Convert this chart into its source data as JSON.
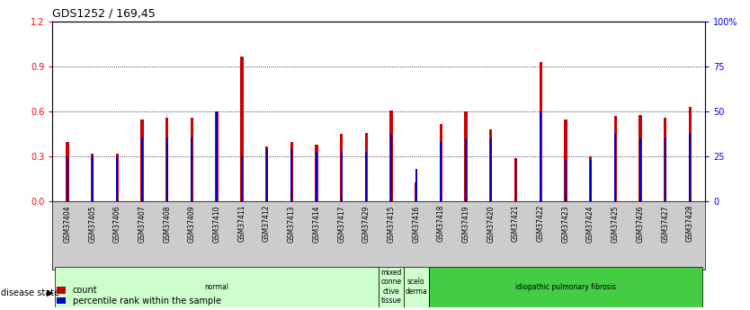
{
  "title": "GDS1252 / 169,45",
  "categories": [
    "GSM37404",
    "GSM37405",
    "GSM37406",
    "GSM37407",
    "GSM37408",
    "GSM37409",
    "GSM37410",
    "GSM37411",
    "GSM37412",
    "GSM37413",
    "GSM37414",
    "GSM37417",
    "GSM37429",
    "GSM37415",
    "GSM37416",
    "GSM37418",
    "GSM37419",
    "GSM37420",
    "GSM37421",
    "GSM37422",
    "GSM37423",
    "GSM37424",
    "GSM37425",
    "GSM37426",
    "GSM37427",
    "GSM37428"
  ],
  "count_values": [
    0.4,
    0.32,
    0.32,
    0.55,
    0.56,
    0.56,
    0.6,
    0.97,
    0.37,
    0.4,
    0.38,
    0.45,
    0.46,
    0.61,
    0.13,
    0.52,
    0.6,
    0.48,
    0.29,
    0.93,
    0.55,
    0.3,
    0.57,
    0.58,
    0.56,
    0.63
  ],
  "percentile_values": [
    0.3,
    0.3,
    0.3,
    0.43,
    0.43,
    0.43,
    0.6,
    0.3,
    0.35,
    0.35,
    0.33,
    0.33,
    0.33,
    0.45,
    0.22,
    0.4,
    0.42,
    0.42,
    0.29,
    0.6,
    0.28,
    0.28,
    0.45,
    0.42,
    0.43,
    0.45
  ],
  "bar_color": "#cc0000",
  "percentile_color": "#0000cc",
  "ylim_left": [
    0,
    1.2
  ],
  "ylim_right": [
    0,
    100
  ],
  "yticks_left": [
    0,
    0.3,
    0.6,
    0.9,
    1.2
  ],
  "yticks_right": [
    0,
    25,
    50,
    75,
    100
  ],
  "disease_groups": [
    {
      "label": "normal",
      "start": 0,
      "end": 13,
      "color": "#ccffcc"
    },
    {
      "label": "mixed\nconne\nctive\ntissue",
      "start": 13,
      "end": 14,
      "color": "#ccffcc"
    },
    {
      "label": "scelo\nderma",
      "start": 14,
      "end": 15,
      "color": "#ccffcc"
    },
    {
      "label": "idiopathic pulmonary fibrosis",
      "start": 15,
      "end": 26,
      "color": "#44cc44"
    }
  ],
  "legend_count": "count",
  "legend_percentile": "percentile rank within the sample",
  "bar_width": 0.12,
  "pct_bar_width": 0.07,
  "tick_label_fontsize": 5.5,
  "title_fontsize": 9,
  "xtick_bg_color": "#cccccc"
}
